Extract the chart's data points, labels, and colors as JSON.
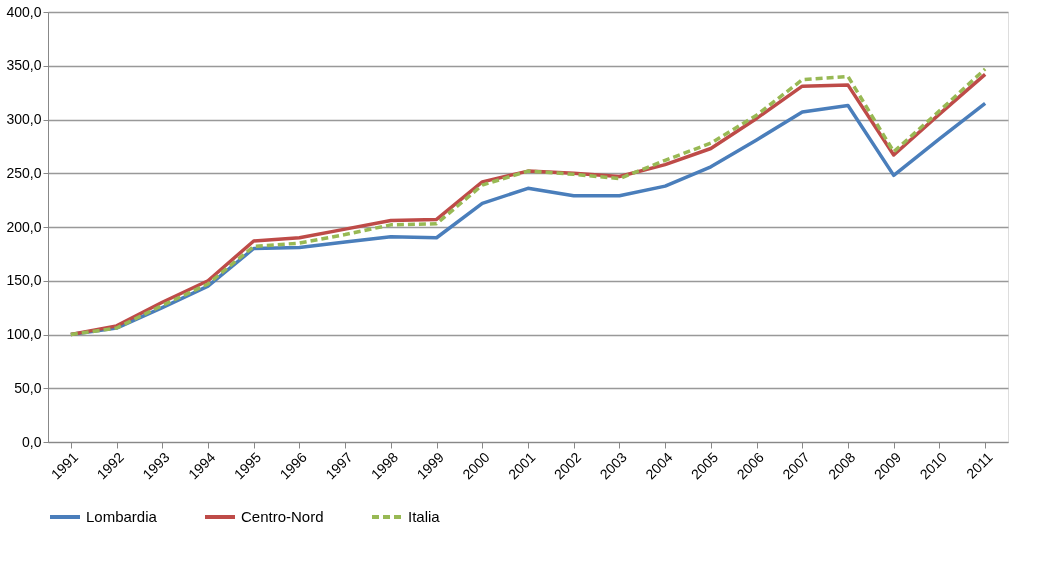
{
  "chart_data": {
    "type": "line",
    "categories": [
      "1991",
      "1992",
      "1993",
      "1994",
      "1995",
      "1996",
      "1997",
      "1998",
      "1999",
      "2000",
      "2001",
      "2002",
      "2003",
      "2004",
      "2005",
      "2006",
      "2007",
      "2008",
      "2009",
      "2010",
      "2011"
    ],
    "series": [
      {
        "name": "Lombardia",
        "color": "#4a7ebb",
        "line_style": "solid",
        "values": [
          100,
          106,
          125,
          145,
          180,
          181,
          186,
          191,
          190,
          222,
          236,
          229,
          229,
          238,
          256,
          281,
          307,
          313,
          248,
          282,
          315
        ]
      },
      {
        "name": "Centro-Nord",
        "color": "#be4b48",
        "line_style": "solid",
        "values": [
          100,
          108,
          130,
          150,
          187,
          190,
          198,
          206,
          207,
          242,
          252,
          250,
          247,
          258,
          273,
          301,
          331,
          332,
          267,
          305,
          342
        ]
      },
      {
        "name": "Italia",
        "color": "#98b954",
        "line_style": "dashed",
        "values": [
          100,
          106,
          127,
          147,
          182,
          185,
          193,
          202,
          203,
          239,
          252,
          249,
          245,
          262,
          278,
          304,
          337,
          340,
          270,
          308,
          347
        ]
      }
    ],
    "ylim": [
      0,
      400
    ],
    "yticks": [
      {
        "value": 0,
        "label": "0,0"
      },
      {
        "value": 50,
        "label": "50,0"
      },
      {
        "value": 100,
        "label": "100,0"
      },
      {
        "value": 150,
        "label": "150,0"
      },
      {
        "value": 200,
        "label": "200,0"
      },
      {
        "value": 250,
        "label": "250,0"
      },
      {
        "value": 300,
        "label": "300,0"
      },
      {
        "value": 350,
        "label": "350,0"
      },
      {
        "value": 400,
        "label": "400,0"
      }
    ],
    "grid": "y",
    "legend": "bottom",
    "marker": "none"
  }
}
